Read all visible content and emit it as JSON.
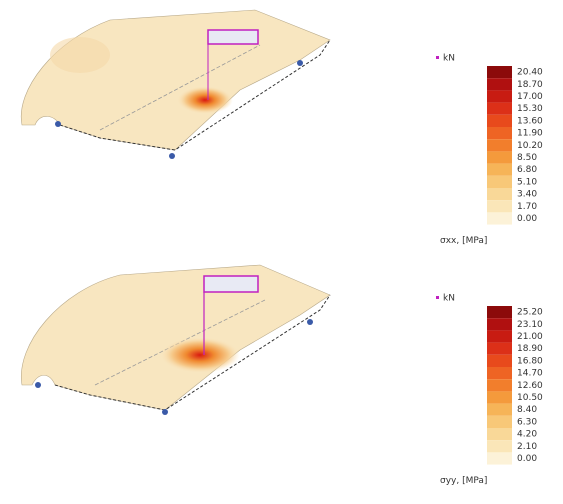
{
  "panels": [
    {
      "unit": "kN",
      "legend_title": "σxx, [MPa]",
      "legend_labels": [
        "20.40",
        "18.70",
        "17.00",
        "15.30",
        "13.60",
        "11.90",
        "10.20",
        "8.50",
        "6.80",
        "5.10",
        "3.40",
        "1.70",
        "0.00"
      ]
    },
    {
      "unit": "kN",
      "legend_title": "σyy, [MPa]",
      "legend_labels": [
        "25.20",
        "23.10",
        "21.00",
        "18.90",
        "16.80",
        "14.70",
        "12.60",
        "10.50",
        "8.40",
        "6.30",
        "4.20",
        "2.10",
        "0.00"
      ]
    }
  ]
}
